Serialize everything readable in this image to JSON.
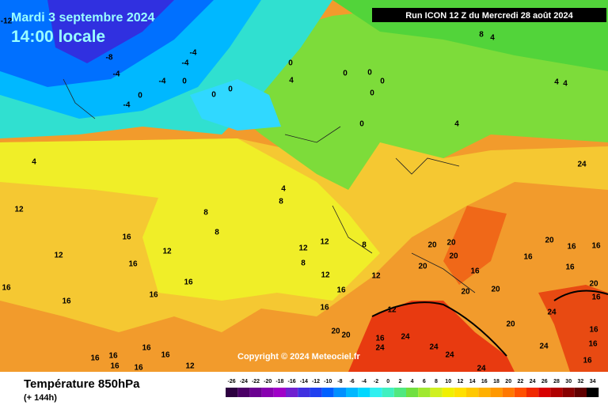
{
  "header": {
    "date": "Mardi 3 septembre 2024",
    "time": "14:00 locale",
    "run": "Run ICON 12 Z du Mercredi 28 août 2024"
  },
  "copyright": "Copyright © 2024 Meteociel.fr",
  "footer": {
    "title": "Température 850hPa",
    "lead": "(+ 144h)"
  },
  "map_labels": [
    -12,
    -8,
    -4,
    -4,
    -4,
    -4,
    0,
    0,
    -4,
    0,
    0,
    0,
    4,
    0,
    0,
    0,
    0,
    0,
    4,
    8,
    4,
    4,
    4,
    4,
    12,
    4,
    8,
    8,
    8,
    12,
    16,
    12,
    16,
    16,
    16,
    16,
    12,
    8,
    12,
    8,
    12,
    12,
    16,
    16,
    12,
    20,
    20,
    16,
    24,
    24,
    24,
    24,
    24,
    20,
    20,
    20,
    20,
    16,
    20,
    20,
    20,
    16,
    16,
    16,
    16,
    20,
    16,
    24,
    20,
    16,
    16,
    24,
    16,
    24,
    12,
    16,
    16,
    16,
    16,
    16,
    16,
    16
  ],
  "legend": {
    "ticks": [
      -26,
      -24,
      -22,
      -20,
      -18,
      -16,
      -14,
      -12,
      -10,
      -8,
      -6,
      -4,
      -2,
      0,
      2,
      4,
      6,
      8,
      10,
      12,
      14,
      16,
      18,
      20,
      22,
      24,
      26,
      28,
      30,
      32,
      34
    ],
    "colors": [
      "#2d0040",
      "#4b0066",
      "#6a0090",
      "#8800b0",
      "#a000c8",
      "#7020d0",
      "#4030e0",
      "#2040f0",
      "#0060ff",
      "#0090ff",
      "#00b8ff",
      "#00d8ff",
      "#30f0f0",
      "#40f0c0",
      "#50e880",
      "#70e040",
      "#a0e830",
      "#d0f020",
      "#f0f000",
      "#ffe000",
      "#ffc800",
      "#ffb000",
      "#ff9800",
      "#ff7800",
      "#ff5000",
      "#f02800",
      "#d80000",
      "#b00000",
      "#880000",
      "#600000",
      "#000000"
    ]
  }
}
